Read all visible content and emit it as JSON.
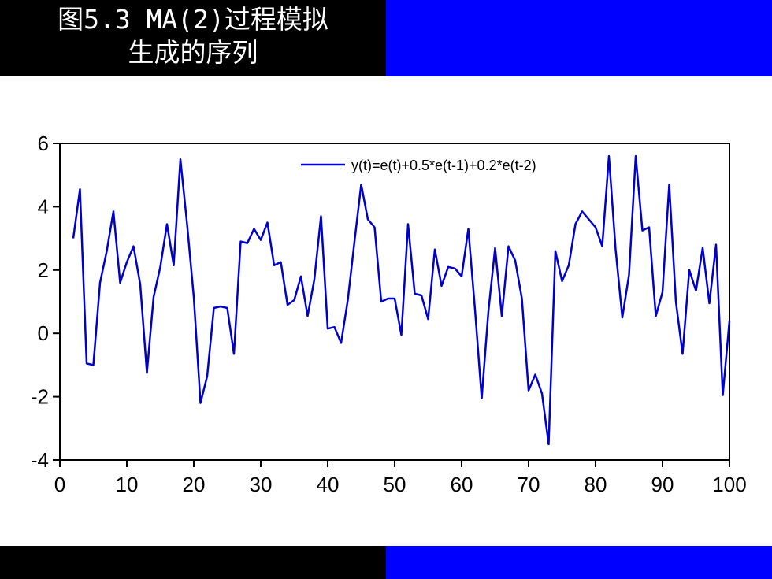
{
  "slide": {
    "title_line1": "图5.3 MA(2)过程模拟",
    "title_line2": "生成的序列"
  },
  "colors": {
    "band_dark": "#000000",
    "band_accent": "#0000ff",
    "series": "#0000cc"
  },
  "chart_data": {
    "type": "line",
    "title": "",
    "xlabel": "",
    "ylabel": "",
    "xlim": [
      0,
      100
    ],
    "ylim": [
      -4,
      6
    ],
    "xticks": [
      0,
      10,
      20,
      30,
      40,
      50,
      60,
      70,
      80,
      90,
      100
    ],
    "yticks": [
      -4,
      -2,
      0,
      2,
      4,
      6
    ],
    "xtick_labels": [
      "0",
      "10",
      "20",
      "30",
      "40",
      "50",
      "60",
      "70",
      "80",
      "90",
      "100"
    ],
    "ytick_labels": [
      "-4",
      "-2",
      "0",
      "2",
      "4",
      "6"
    ],
    "grid": false,
    "legend_position": "top-right",
    "series": [
      {
        "name": "y(t)=e(t)+0.5*e(t-1)+0.2*e(t-2)",
        "x": [
          2,
          3,
          4,
          5,
          6,
          7,
          8,
          9,
          10,
          11,
          12,
          13,
          14,
          15,
          16,
          17,
          18,
          19,
          20,
          21,
          22,
          23,
          24,
          25,
          26,
          27,
          28,
          29,
          30,
          31,
          32,
          33,
          34,
          35,
          36,
          37,
          38,
          39,
          40,
          41,
          42,
          43,
          44,
          45,
          46,
          47,
          48,
          49,
          50,
          51,
          52,
          53,
          54,
          55,
          56,
          57,
          58,
          59,
          60,
          61,
          62,
          63,
          64,
          65,
          66,
          67,
          68,
          69,
          70,
          71,
          72,
          73,
          74,
          75,
          76,
          77,
          78,
          79,
          80,
          81,
          82,
          83,
          84,
          85,
          86,
          87,
          88,
          89,
          90,
          91,
          92,
          93,
          94,
          95,
          96,
          97,
          98,
          99,
          100
        ],
        "values": [
          3.0,
          4.55,
          -0.95,
          -1.0,
          1.6,
          2.6,
          3.85,
          1.6,
          2.25,
          2.75,
          1.55,
          -1.25,
          1.15,
          2.1,
          3.45,
          2.15,
          5.5,
          3.45,
          1.15,
          -2.2,
          -1.35,
          0.8,
          0.85,
          0.8,
          -0.65,
          2.9,
          2.85,
          3.3,
          2.95,
          3.5,
          2.15,
          2.25,
          0.9,
          1.05,
          1.8,
          0.55,
          1.7,
          3.7,
          0.15,
          0.2,
          -0.3,
          1.05,
          2.9,
          4.7,
          3.6,
          3.35,
          1.0,
          1.1,
          1.1,
          -0.05,
          3.45,
          1.25,
          1.2,
          0.45,
          2.65,
          1.5,
          2.1,
          2.05,
          1.8,
          3.3,
          0.75,
          -2.05,
          0.7,
          2.7,
          0.55,
          2.75,
          2.3,
          1.1,
          -1.8,
          -1.3,
          -1.9,
          -3.5,
          2.6,
          1.65,
          2.15,
          3.45,
          3.85,
          3.6,
          3.35,
          2.75,
          5.6,
          2.65,
          0.5,
          1.85,
          5.6,
          3.25,
          3.35,
          0.55,
          1.3,
          4.7,
          1.0,
          -0.65,
          2.0,
          1.35,
          2.7,
          0.95,
          2.8,
          -1.95,
          0.4
        ]
      }
    ]
  }
}
